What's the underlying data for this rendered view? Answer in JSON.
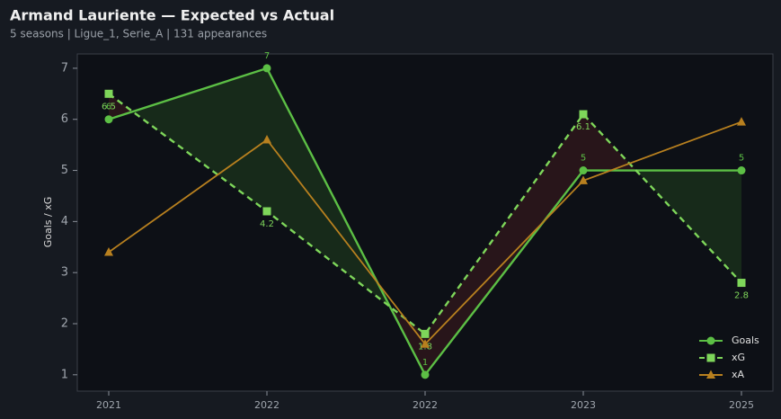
{
  "chart_data": {
    "type": "line",
    "title": "Armand Lauriente — Expected vs Actual",
    "subtitle": "5 seasons | Ligue_1, Serie_A | 131 appearances",
    "y_label": "Goals / xG",
    "categories": [
      "2021",
      "2022",
      "2022",
      "2023",
      "2025"
    ],
    "series": [
      {
        "name": "Goals",
        "color": "#5cbf45",
        "marker": "circle",
        "dashed": false,
        "labels": true,
        "values": [
          6,
          7,
          1,
          5,
          5
        ]
      },
      {
        "name": "xG",
        "color": "#7ed65a",
        "marker": "square",
        "dashed": true,
        "labels": true,
        "values": [
          6.5,
          4.2,
          1.8,
          6.1,
          2.8
        ]
      },
      {
        "name": "xA",
        "color": "#b8801f",
        "marker": "triangle",
        "dashed": false,
        "labels": false,
        "values": [
          3.4,
          5.6,
          1.6,
          4.8,
          5.95
        ]
      }
    ],
    "ylim": [
      0.68,
      7.28
    ],
    "yticks": [
      1,
      2,
      3,
      4,
      5,
      6,
      7
    ],
    "legend_position": "lower right"
  }
}
